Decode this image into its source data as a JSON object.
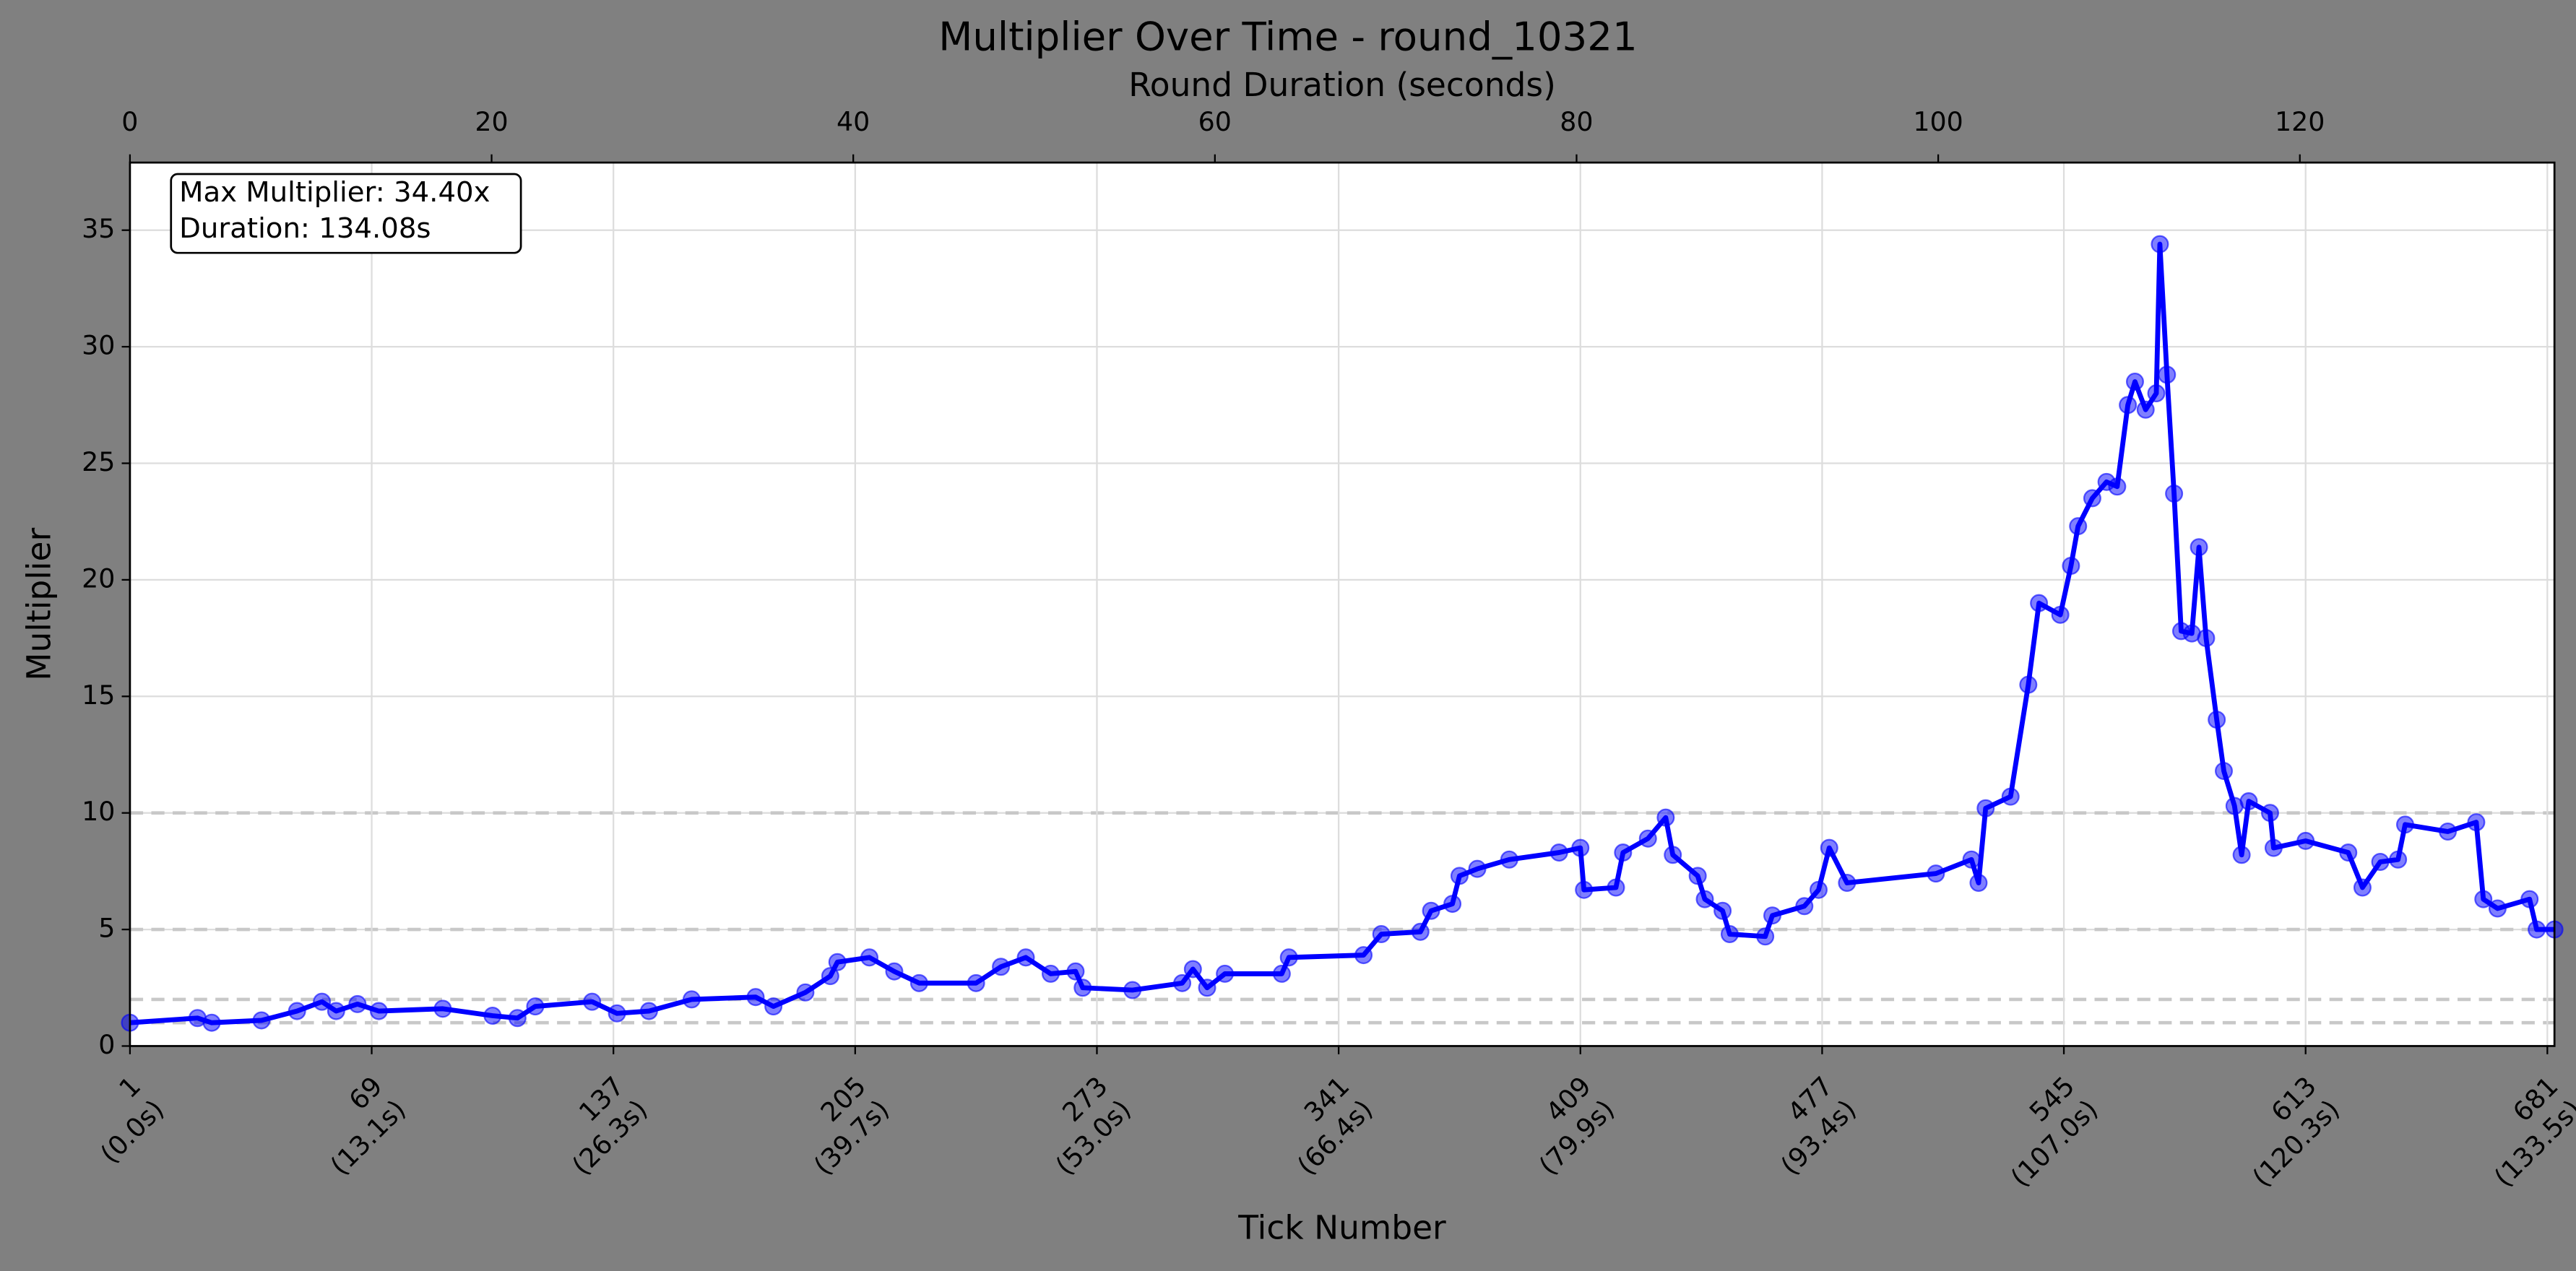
{
  "chart_data": {
    "type": "line",
    "title": "Multiplier Over Time - round_10321",
    "xlabel": "Tick Number",
    "ylabel": "Multiplier",
    "x2label": "Round Duration (seconds)",
    "annotation": [
      "Max Multiplier: 34.40x",
      "Duration: 134.08s"
    ],
    "xlim": [
      1,
      683
    ],
    "xticks": [
      {
        "value": 1,
        "label": "1\n(0.0s)"
      },
      {
        "value": 69,
        "label": "69\n(13.1s)"
      },
      {
        "value": 137,
        "label": "137\n(26.3s)"
      },
      {
        "value": 205,
        "label": "205\n(39.7s)"
      },
      {
        "value": 273,
        "label": "273\n(53.0s)"
      },
      {
        "value": 341,
        "label": "341\n(66.4s)"
      },
      {
        "value": 409,
        "label": "409\n(79.9s)"
      },
      {
        "value": 477,
        "label": "477\n(93.4s)"
      },
      {
        "value": 545,
        "label": "545\n(107.0s)"
      },
      {
        "value": 613,
        "label": "613\n(120.3s)"
      },
      {
        "value": 681,
        "label": "681\n(133.5s)"
      }
    ],
    "x2lim": [
      0,
      134.08
    ],
    "x2ticks": [
      0,
      20,
      40,
      60,
      80,
      100,
      120
    ],
    "ylim": [
      0,
      37.9
    ],
    "yticks": [
      0,
      5,
      10,
      15,
      20,
      25,
      30,
      35
    ],
    "hlines": [
      1,
      2,
      5,
      10
    ],
    "grid": true,
    "x": [
      1,
      20,
      24,
      38,
      48,
      55,
      59,
      65,
      71,
      89,
      103,
      110,
      115,
      131,
      138,
      147,
      159,
      177,
      182,
      191,
      198,
      200,
      209,
      216,
      223,
      239,
      246,
      253,
      260,
      267,
      269,
      283,
      297,
      300,
      304,
      309,
      325,
      327,
      348,
      353,
      364,
      367,
      373,
      375,
      380,
      389,
      403,
      409,
      410,
      419,
      421,
      428,
      433,
      435,
      442,
      444,
      449,
      451,
      461,
      463,
      472,
      476,
      479,
      484,
      509,
      519,
      521,
      523,
      530,
      535,
      538,
      544,
      547,
      549,
      553,
      557,
      560,
      563,
      565,
      568,
      571,
      572,
      574,
      576,
      578,
      581,
      583,
      585,
      588,
      590,
      593,
      595,
      597,
      603,
      604,
      613,
      625,
      629,
      634,
      639,
      641,
      653,
      661,
      663,
      667,
      676,
      678,
      683
    ],
    "series": [
      {
        "color": "#0000ff",
        "values": [
          1.0,
          1.2,
          1.0,
          1.1,
          1.5,
          1.9,
          1.5,
          1.8,
          1.5,
          1.6,
          1.3,
          1.2,
          1.7,
          1.9,
          1.4,
          1.5,
          2.0,
          2.1,
          1.7,
          2.3,
          3.0,
          3.6,
          3.8,
          3.2,
          2.7,
          2.7,
          3.4,
          3.8,
          3.1,
          3.2,
          2.5,
          2.4,
          2.7,
          3.3,
          2.5,
          3.1,
          3.1,
          3.8,
          3.9,
          4.8,
          4.9,
          5.8,
          6.1,
          7.3,
          7.6,
          8.0,
          8.3,
          8.5,
          6.7,
          6.8,
          8.3,
          8.9,
          9.8,
          8.2,
          7.3,
          6.3,
          5.8,
          4.8,
          4.7,
          5.6,
          6.0,
          6.7,
          8.5,
          7.0,
          7.4,
          8.0,
          7.0,
          10.2,
          10.7,
          15.5,
          19.0,
          18.5,
          20.6,
          22.3,
          23.5,
          24.2,
          24.0,
          27.5,
          28.5,
          27.3,
          28.0,
          34.4,
          28.8,
          23.7,
          17.8,
          17.7,
          21.4,
          17.5,
          14.0,
          11.8,
          10.3,
          8.2,
          10.5,
          10.0,
          8.5,
          8.8,
          8.3,
          6.8,
          7.9,
          8.0,
          9.5,
          9.2,
          9.6,
          6.3,
          5.9,
          6.3,
          5.0,
          5.0
        ]
      }
    ]
  }
}
